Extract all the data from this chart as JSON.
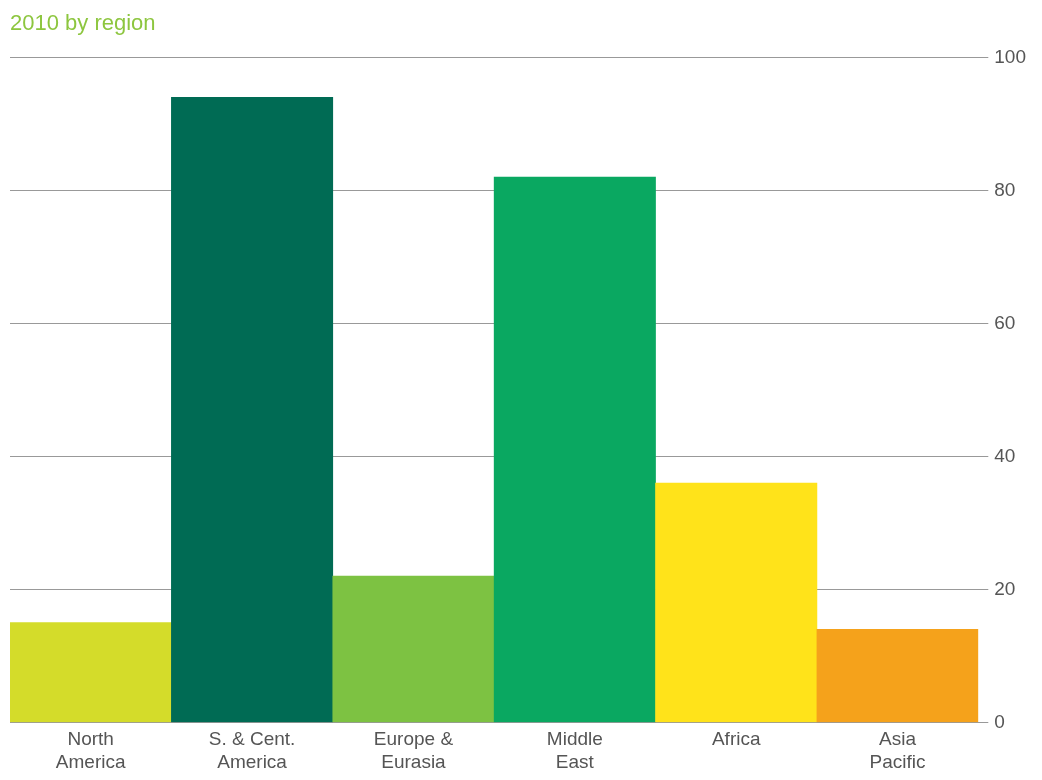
{
  "chart_data": {
    "type": "bar",
    "title": "2010 by region",
    "categories": [
      [
        "North",
        "America"
      ],
      [
        "S. & Cent.",
        "America"
      ],
      [
        "Europe &",
        "Eurasia"
      ],
      [
        "Middle",
        "East"
      ],
      [
        "Africa"
      ],
      [
        "Asia",
        "Pacific"
      ]
    ],
    "values": [
      15,
      94,
      22,
      82,
      36,
      14
    ],
    "colors": [
      "#d4dc2a",
      "#006b54",
      "#7dc242",
      "#0aa861",
      "#ffe31a",
      "#f5a21b"
    ],
    "ylim": [
      0,
      100
    ],
    "yticks": [
      0,
      20,
      40,
      60,
      80,
      100
    ],
    "grid": "y"
  }
}
